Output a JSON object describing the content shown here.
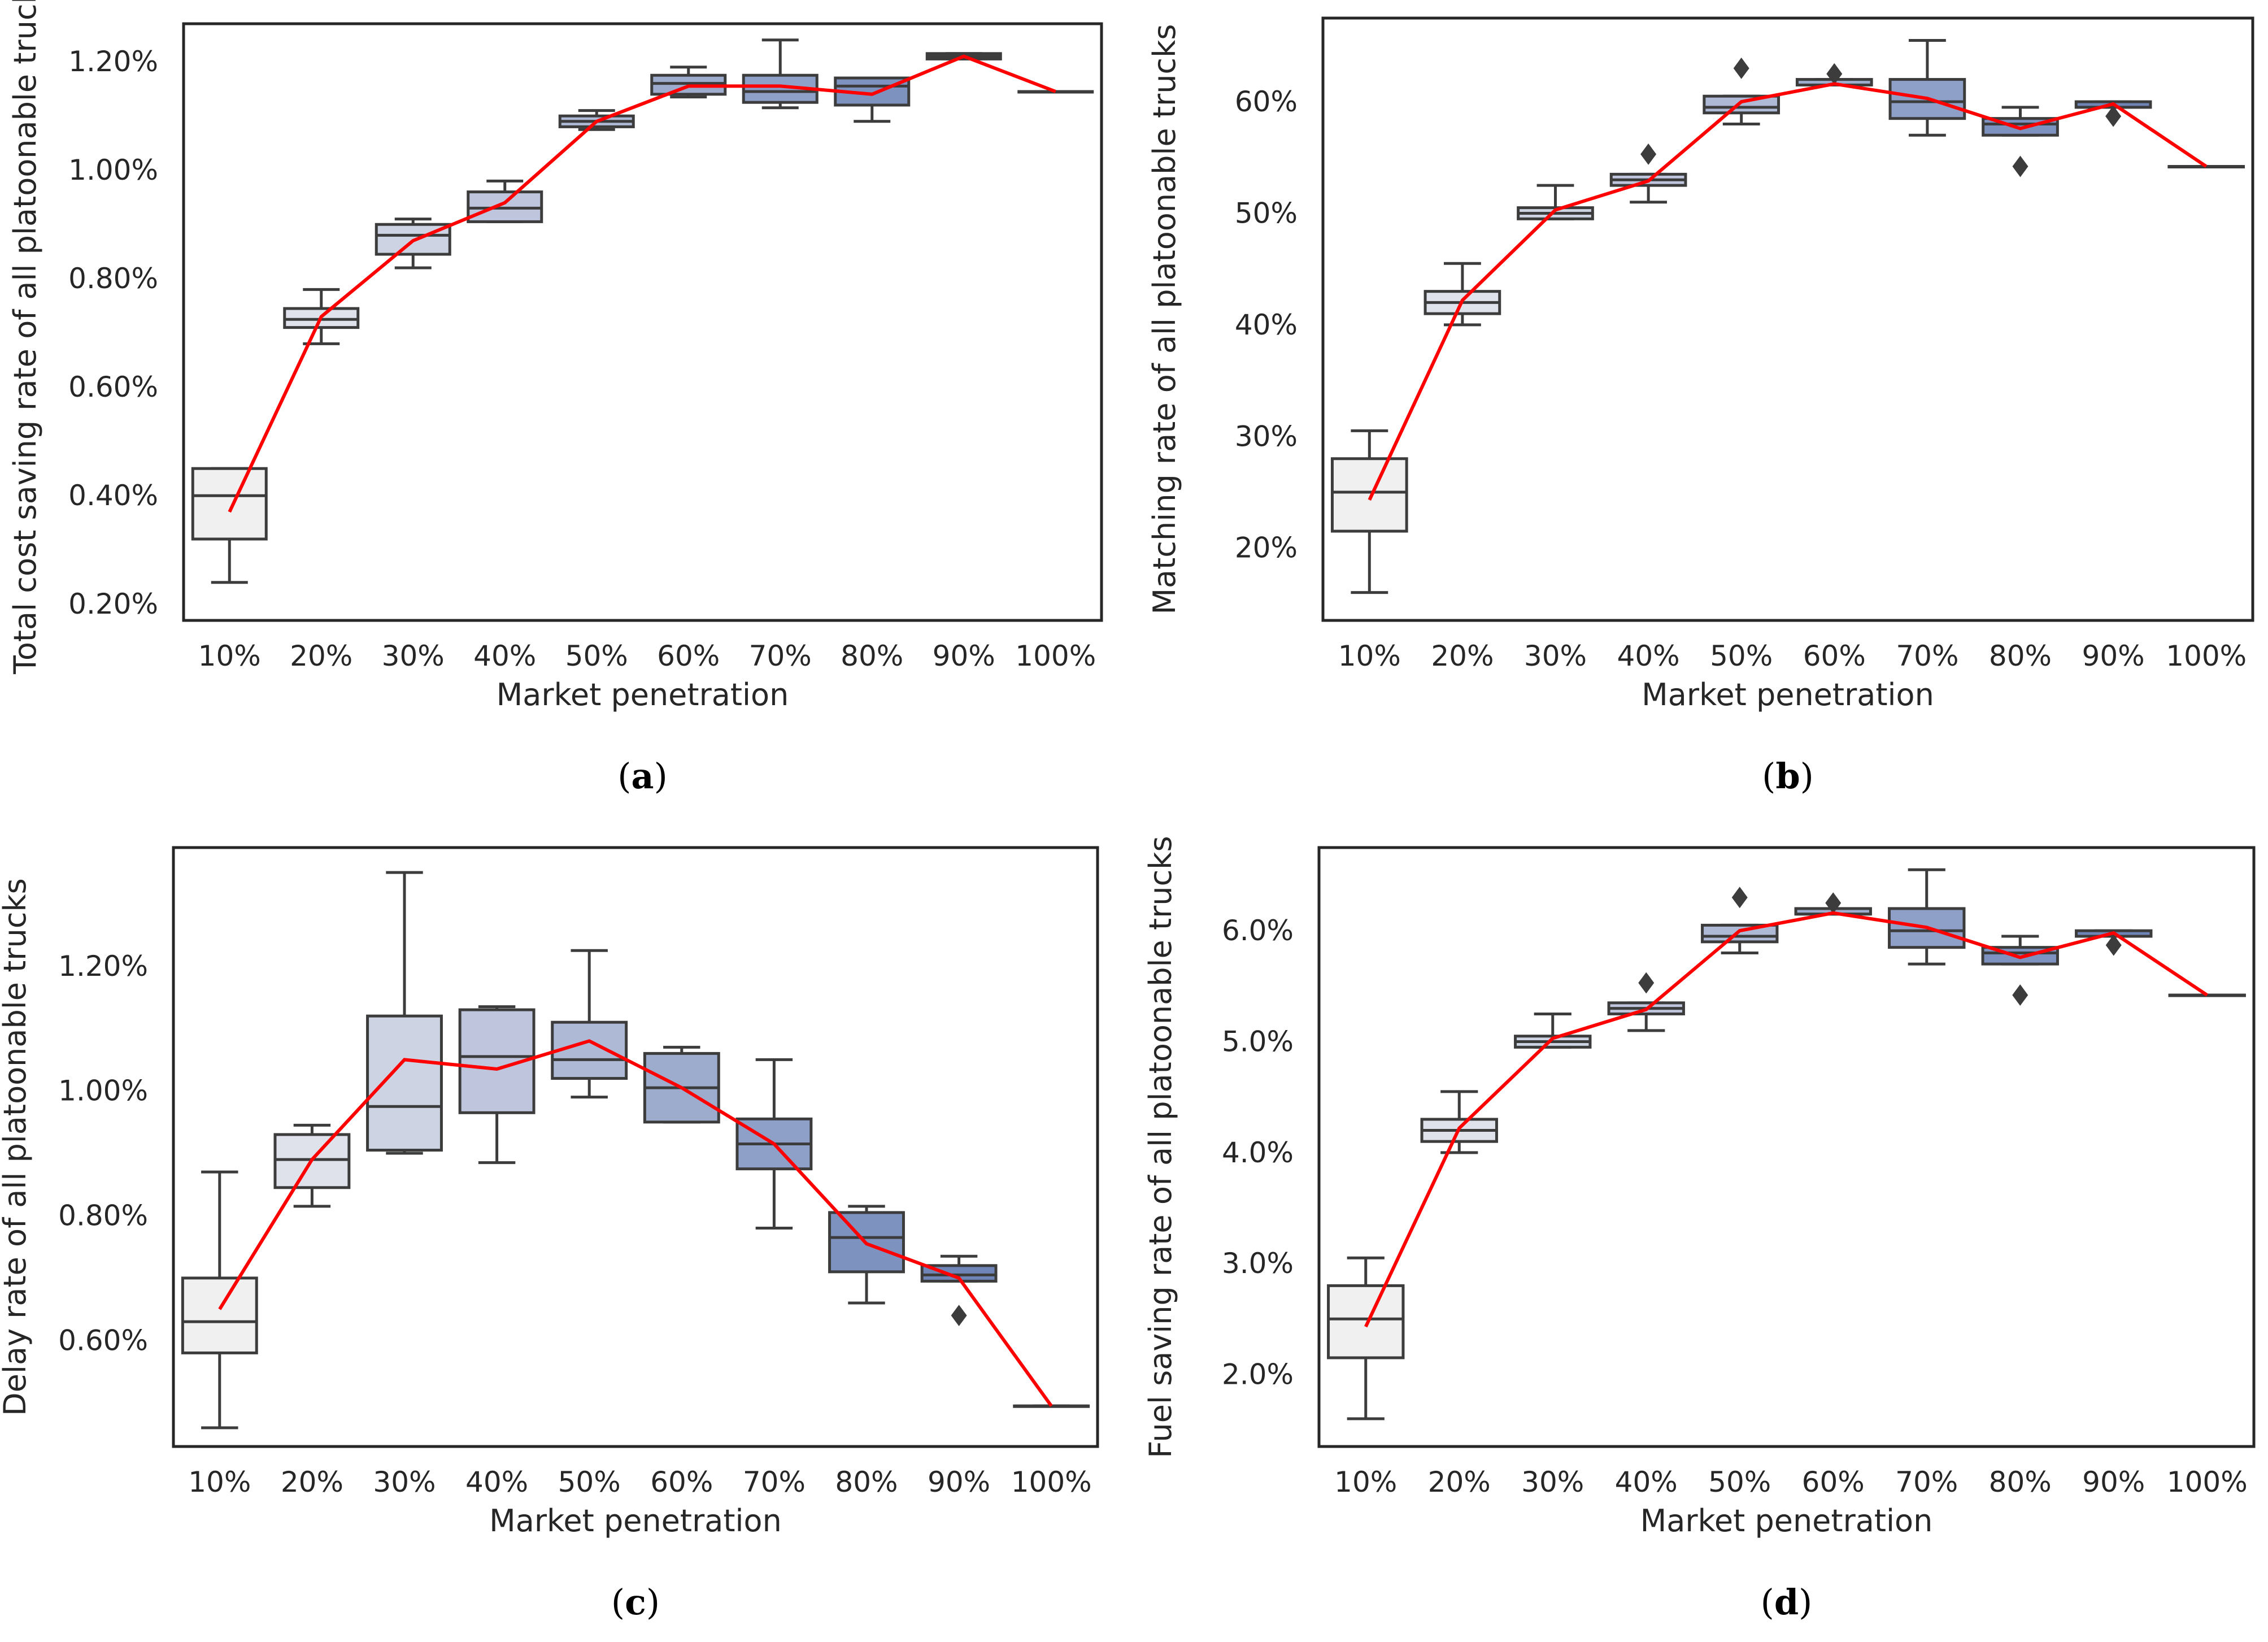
{
  "chart_data": [
    {
      "id": "a",
      "type": "box",
      "panel_label": "a",
      "xlabel": "Market penetration",
      "ylabel": "Total cost saving rate of all platoonable trucks",
      "categories": [
        "10%",
        "20%",
        "30%",
        "40%",
        "50%",
        "60%",
        "70%",
        "80%",
        "90%",
        "100%"
      ],
      "ylim": [
        0.17,
        1.27
      ],
      "yticks": [
        0.2,
        0.4,
        0.6,
        0.8,
        1.0,
        1.2
      ],
      "ytick_labels": [
        "0.20%",
        "0.40%",
        "0.60%",
        "0.80%",
        "1.00%",
        "1.20%"
      ],
      "boxes": [
        {
          "min": 0.24,
          "q1": 0.32,
          "median": 0.4,
          "q3": 0.45,
          "max": 0.45,
          "outliers": []
        },
        {
          "min": 0.68,
          "q1": 0.71,
          "median": 0.725,
          "q3": 0.745,
          "max": 0.78,
          "outliers": []
        },
        {
          "min": 0.82,
          "q1": 0.845,
          "median": 0.88,
          "q3": 0.9,
          "max": 0.91,
          "outliers": []
        },
        {
          "min": 0.905,
          "q1": 0.905,
          "median": 0.93,
          "q3": 0.96,
          "max": 0.98,
          "outliers": []
        },
        {
          "min": 1.075,
          "q1": 1.08,
          "median": 1.09,
          "q3": 1.1,
          "max": 1.11,
          "outliers": []
        },
        {
          "min": 1.135,
          "q1": 1.14,
          "median": 1.16,
          "q3": 1.175,
          "max": 1.19,
          "outliers": []
        },
        {
          "min": 1.115,
          "q1": 1.125,
          "median": 1.145,
          "q3": 1.175,
          "max": 1.24,
          "outliers": []
        },
        {
          "min": 1.09,
          "q1": 1.12,
          "median": 1.155,
          "q3": 1.17,
          "max": 1.17,
          "outliers": []
        },
        {
          "min": 1.205,
          "q1": 1.205,
          "median": 1.21,
          "q3": 1.215,
          "max": 1.215,
          "outliers": []
        },
        {
          "min": 1.145,
          "q1": 1.145,
          "median": 1.145,
          "q3": 1.145,
          "max": 1.145,
          "outliers": []
        }
      ],
      "line": [
        0.37,
        0.73,
        0.87,
        0.94,
        1.09,
        1.155,
        1.155,
        1.14,
        1.21,
        1.145
      ]
    },
    {
      "id": "b",
      "type": "box",
      "panel_label": "b",
      "xlabel": "Market penetration",
      "ylabel": "Matching rate of all platoonable trucks",
      "categories": [
        "10%",
        "20%",
        "30%",
        "40%",
        "50%",
        "60%",
        "70%",
        "80%",
        "90%",
        "100%"
      ],
      "ylim": [
        13.5,
        67.5
      ],
      "yticks": [
        20,
        30,
        40,
        50,
        60
      ],
      "ytick_labels": [
        "20%",
        "30%",
        "40%",
        "50%",
        "60%"
      ],
      "boxes": [
        {
          "min": 16,
          "q1": 21.5,
          "median": 25,
          "q3": 28,
          "max": 30.5,
          "outliers": []
        },
        {
          "min": 40,
          "q1": 41,
          "median": 42,
          "q3": 43,
          "max": 45.5,
          "outliers": []
        },
        {
          "min": 49.5,
          "q1": 49.5,
          "median": 50,
          "q3": 50.5,
          "max": 52.5,
          "outliers": []
        },
        {
          "min": 51,
          "q1": 52.5,
          "median": 53,
          "q3": 53.5,
          "max": 53.5,
          "outliers": [
            55.3
          ]
        },
        {
          "min": 58,
          "q1": 59,
          "median": 59.5,
          "q3": 60.5,
          "max": 60.5,
          "outliers": [
            63
          ]
        },
        {
          "min": 61.5,
          "q1": 61.5,
          "median": 61.5,
          "q3": 62,
          "max": 62,
          "outliers": [
            62.5
          ]
        },
        {
          "min": 57,
          "q1": 58.5,
          "median": 60,
          "q3": 62,
          "max": 65.5,
          "outliers": []
        },
        {
          "min": 57,
          "q1": 57,
          "median": 58,
          "q3": 58.5,
          "max": 59.5,
          "outliers": [
            54.2
          ]
        },
        {
          "min": 59.5,
          "q1": 59.5,
          "median": 59.5,
          "q3": 60,
          "max": 60,
          "outliers": [
            58.7
          ]
        },
        {
          "min": 54.2,
          "q1": 54.2,
          "median": 54.2,
          "q3": 54.2,
          "max": 54.2,
          "outliers": []
        }
      ],
      "line": [
        24.3,
        42.2,
        50.3,
        52.9,
        60,
        61.6,
        60.3,
        57.6,
        59.8,
        54.2
      ]
    },
    {
      "id": "c",
      "type": "box",
      "panel_label": "c",
      "xlabel": "Market penetration",
      "ylabel": "Delay rate of all platoonable trucks",
      "categories": [
        "10%",
        "20%",
        "30%",
        "40%",
        "50%",
        "60%",
        "70%",
        "80%",
        "90%",
        "100%"
      ],
      "ylim": [
        0.43,
        1.39
      ],
      "yticks": [
        0.6,
        0.8,
        1.0,
        1.2
      ],
      "ytick_labels": [
        "0.60%",
        "0.80%",
        "1.00%",
        "1.20%"
      ],
      "boxes": [
        {
          "min": 0.46,
          "q1": 0.58,
          "median": 0.63,
          "q3": 0.7,
          "max": 0.87,
          "outliers": []
        },
        {
          "min": 0.815,
          "q1": 0.845,
          "median": 0.89,
          "q3": 0.93,
          "max": 0.945,
          "outliers": []
        },
        {
          "min": 0.9,
          "q1": 0.905,
          "median": 0.975,
          "q3": 1.12,
          "max": 1.35,
          "outliers": []
        },
        {
          "min": 0.885,
          "q1": 0.965,
          "median": 1.055,
          "q3": 1.13,
          "max": 1.135,
          "outliers": []
        },
        {
          "min": 0.99,
          "q1": 1.02,
          "median": 1.05,
          "q3": 1.11,
          "max": 1.225,
          "outliers": []
        },
        {
          "min": 0.95,
          "q1": 0.95,
          "median": 1.005,
          "q3": 1.06,
          "max": 1.07,
          "outliers": []
        },
        {
          "min": 0.78,
          "q1": 0.875,
          "median": 0.915,
          "q3": 0.955,
          "max": 1.05,
          "outliers": []
        },
        {
          "min": 0.66,
          "q1": 0.71,
          "median": 0.765,
          "q3": 0.805,
          "max": 0.815,
          "outliers": []
        },
        {
          "min": 0.695,
          "q1": 0.695,
          "median": 0.705,
          "q3": 0.72,
          "max": 0.735,
          "outliers": [
            0.64
          ]
        },
        {
          "min": 0.495,
          "q1": 0.495,
          "median": 0.495,
          "q3": 0.495,
          "max": 0.495,
          "outliers": []
        }
      ],
      "line": [
        0.65,
        0.89,
        1.05,
        1.035,
        1.08,
        1.005,
        0.915,
        0.755,
        0.7,
        0.495
      ]
    },
    {
      "id": "d",
      "type": "box",
      "panel_label": "d",
      "xlabel": "Market penetration",
      "ylabel": "Fuel saving rate of all platoonable trucks",
      "categories": [
        "10%",
        "20%",
        "30%",
        "40%",
        "50%",
        "60%",
        "70%",
        "80%",
        "90%",
        "100%"
      ],
      "ylim": [
        1.35,
        6.75
      ],
      "yticks": [
        2.0,
        3.0,
        4.0,
        5.0,
        6.0
      ],
      "ytick_labels": [
        "2.0%",
        "3.0%",
        "4.0%",
        "5.0%",
        "6.0%"
      ],
      "boxes": [
        {
          "min": 1.6,
          "q1": 2.15,
          "median": 2.5,
          "q3": 2.8,
          "max": 3.05,
          "outliers": []
        },
        {
          "min": 4.0,
          "q1": 4.1,
          "median": 4.2,
          "q3": 4.3,
          "max": 4.55,
          "outliers": []
        },
        {
          "min": 4.95,
          "q1": 4.95,
          "median": 5.0,
          "q3": 5.05,
          "max": 5.25,
          "outliers": []
        },
        {
          "min": 5.1,
          "q1": 5.25,
          "median": 5.3,
          "q3": 5.35,
          "max": 5.35,
          "outliers": [
            5.53
          ]
        },
        {
          "min": 5.8,
          "q1": 5.9,
          "median": 5.95,
          "q3": 6.05,
          "max": 6.05,
          "outliers": [
            6.3
          ]
        },
        {
          "min": 6.15,
          "q1": 6.15,
          "median": 6.15,
          "q3": 6.2,
          "max": 6.2,
          "outliers": [
            6.25
          ]
        },
        {
          "min": 5.7,
          "q1": 5.85,
          "median": 6.0,
          "q3": 6.2,
          "max": 6.55,
          "outliers": []
        },
        {
          "min": 5.7,
          "q1": 5.7,
          "median": 5.8,
          "q3": 5.85,
          "max": 5.95,
          "outliers": [
            5.42
          ]
        },
        {
          "min": 5.95,
          "q1": 5.95,
          "median": 5.95,
          "q3": 6.0,
          "max": 6.0,
          "outliers": [
            5.87
          ]
        },
        {
          "min": 5.42,
          "q1": 5.42,
          "median": 5.42,
          "q3": 5.42,
          "max": 5.42,
          "outliers": []
        }
      ],
      "line": [
        2.43,
        4.22,
        5.03,
        5.29,
        6.0,
        6.16,
        6.03,
        5.76,
        5.98,
        5.42
      ]
    }
  ],
  "style": {
    "box_colors": [
      "#f0f0f0",
      "#dfe2ea",
      "#cdd3e2",
      "#bec5dc",
      "#aeb9d5",
      "#9daccd",
      "#8e9fc8",
      "#7e92c0",
      "#6f85b8",
      "#6078b2"
    ],
    "box_edge": "#3c3c3c",
    "line_color": "#ff0000",
    "frame_color": "#262626"
  }
}
